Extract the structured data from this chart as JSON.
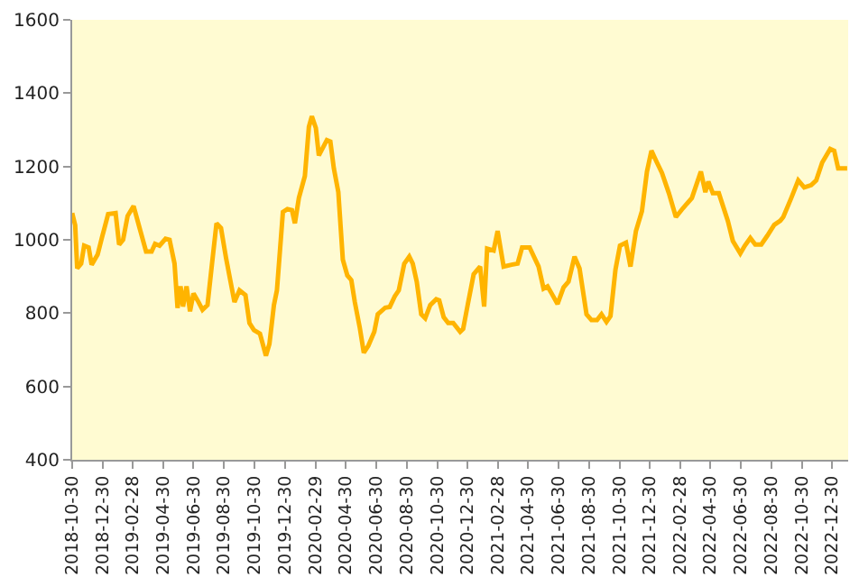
{
  "chart_data": {
    "type": "line",
    "grid": false,
    "marker": "none",
    "line_style": "solid",
    "x": [
      "2018-10-30",
      "2018-11-05",
      "2018-11-09",
      "2018-11-17",
      "2018-11-23",
      "2018-12-02",
      "2018-12-08",
      "2018-12-20",
      "2018-12-29",
      "2019-01-10",
      "2019-01-25",
      "2019-02-01",
      "2019-02-09",
      "2019-02-18",
      "2019-03-02",
      "2019-03-14",
      "2019-03-27",
      "2019-04-07",
      "2019-04-14",
      "2019-04-23",
      "2019-05-05",
      "2019-05-13",
      "2019-05-23",
      "2019-05-29",
      "2019-06-04",
      "2019-06-09",
      "2019-06-16",
      "2019-06-23",
      "2019-06-30",
      "2019-07-10",
      "2019-07-18",
      "2019-07-28",
      "2019-08-06",
      "2019-08-15",
      "2019-08-24",
      "2019-09-03",
      "2019-09-20",
      "2019-09-30",
      "2019-10-12",
      "2019-10-20",
      "2019-10-29",
      "2019-11-10",
      "2019-11-22",
      "2019-11-29",
      "2019-12-08",
      "2019-12-14",
      "2019-12-26",
      "2020-01-04",
      "2020-01-13",
      "2020-01-19",
      "2020-01-27",
      "2020-02-08",
      "2020-02-16",
      "2020-02-22",
      "2020-03-01",
      "2020-03-07",
      "2020-03-15",
      "2020-03-23",
      "2020-03-30",
      "2020-04-06",
      "2020-04-15",
      "2020-04-24",
      "2020-05-03",
      "2020-05-11",
      "2020-05-18",
      "2020-05-28",
      "2020-06-05",
      "2020-06-14",
      "2020-06-26",
      "2020-07-03",
      "2020-07-18",
      "2020-07-27",
      "2020-08-06",
      "2020-08-14",
      "2020-08-25",
      "2020-09-04",
      "2020-09-11",
      "2020-09-19",
      "2020-09-28",
      "2020-10-06",
      "2020-10-16",
      "2020-10-28",
      "2020-11-03",
      "2020-11-12",
      "2020-11-21",
      "2020-12-01",
      "2020-12-15",
      "2020-12-21",
      "2020-12-30",
      "2021-01-11",
      "2021-01-24",
      "2021-02-01",
      "2021-02-07",
      "2021-02-20",
      "2021-02-28",
      "2021-03-12",
      "2021-03-28",
      "2021-04-09",
      "2021-04-18",
      "2021-05-03",
      "2021-05-21",
      "2021-05-31",
      "2021-06-08",
      "2021-06-16",
      "2021-06-28",
      "2021-07-10",
      "2021-07-20",
      "2021-08-01",
      "2021-08-11",
      "2021-08-25",
      "2021-09-04",
      "2021-09-15",
      "2021-09-24",
      "2021-10-04",
      "2021-10-12",
      "2021-10-22",
      "2021-10-31",
      "2021-11-12",
      "2021-11-21",
      "2021-12-02",
      "2021-12-14",
      "2021-12-24",
      "2022-01-02",
      "2022-01-13",
      "2022-01-23",
      "2022-02-06",
      "2022-02-20",
      "2022-03-06",
      "2022-03-24",
      "2022-04-03",
      "2022-04-11",
      "2022-04-20",
      "2022-04-26",
      "2022-05-05",
      "2022-05-17",
      "2022-06-04",
      "2022-06-14",
      "2022-06-29",
      "2022-07-08",
      "2022-07-19",
      "2022-07-29",
      "2022-08-10",
      "2022-08-22",
      "2022-09-05",
      "2022-09-17",
      "2022-09-23",
      "2022-10-09",
      "2022-10-23",
      "2022-11-04",
      "2022-11-18",
      "2022-11-28",
      "2022-12-10",
      "2022-12-26",
      "2023-01-03",
      "2023-01-11",
      "2023-01-29"
    ],
    "series": [
      {
        "color": "#ffb400",
        "values": [
          1073,
          1040,
          922,
          935,
          984,
          979,
          932,
          960,
          1008,
          1070,
          1073,
          987,
          1000,
          1065,
          1092,
          1032,
          968,
          968,
          989,
          984,
          1003,
          1000,
          935,
          814,
          873,
          818,
          873,
          805,
          854,
          830,
          809,
          822,
          935,
          1045,
          1032,
          951,
          830,
          862,
          849,
          773,
          754,
          744,
          684,
          716,
          822,
          862,
          1076,
          1084,
          1081,
          1045,
          1114,
          1174,
          1308,
          1337,
          1305,
          1230,
          1251,
          1272,
          1268,
          1195,
          1130,
          946,
          903,
          890,
          830,
          760,
          692,
          711,
          749,
          797,
          815,
          817,
          846,
          862,
          935,
          954,
          935,
          886,
          797,
          786,
          822,
          838,
          835,
          789,
          773,
          773,
          749,
          757,
          822,
          906,
          927,
          818,
          976,
          971,
          1024,
          927,
          932,
          935,
          979,
          979,
          927,
          867,
          873,
          854,
          825,
          870,
          886,
          954,
          922,
          797,
          781,
          781,
          797,
          776,
          792,
          919,
          984,
          992,
          927,
          1024,
          1078,
          1186,
          1243,
          1211,
          1183,
          1127,
          1062,
          1086,
          1114,
          1154,
          1186,
          1130,
          1159,
          1127,
          1127,
          1052,
          997,
          963,
          984,
          1005,
          987,
          987,
          1011,
          1041,
          1052,
          1062,
          1114,
          1162,
          1143,
          1149,
          1162,
          1211,
          1248,
          1243,
          1195,
          1195
        ]
      }
    ],
    "xlim": [
      "2018-10-30",
      "2023-01-31"
    ],
    "xticks": [
      "2018-10-30",
      "2018-12-30",
      "2019-02-28",
      "2019-04-30",
      "2019-06-30",
      "2019-08-30",
      "2019-10-30",
      "2019-12-30",
      "2020-02-29",
      "2020-04-30",
      "2020-06-30",
      "2020-08-30",
      "2020-10-30",
      "2020-12-30",
      "2021-02-28",
      "2021-04-30",
      "2021-06-30",
      "2021-08-30",
      "2021-10-30",
      "2021-12-30",
      "2022-02-28",
      "2022-04-30",
      "2022-06-30",
      "2022-08-30",
      "2022-10-30",
      "2022-12-30"
    ],
    "ylim": [
      400,
      1600
    ],
    "yticks": [
      400,
      600,
      800,
      1000,
      1200,
      1400,
      1600
    ]
  }
}
